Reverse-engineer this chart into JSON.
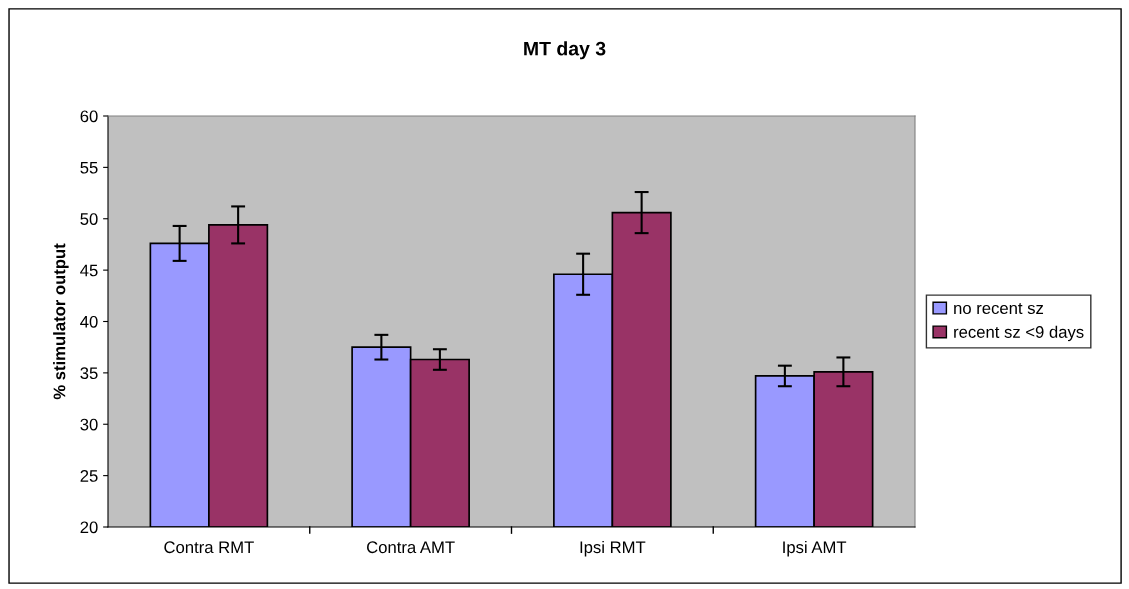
{
  "chart_data": {
    "type": "bar",
    "title": "MT day 3",
    "ylabel": "% stimulator output",
    "categories": [
      "Contra RMT",
      "Contra AMT",
      "Ipsi RMT",
      "Ipsi AMT"
    ],
    "series": [
      {
        "name": "no recent sz",
        "color": "#9999ff",
        "values": [
          47.6,
          37.5,
          44.6,
          34.7
        ],
        "errors": [
          1.7,
          1.2,
          2.0,
          1.0
        ]
      },
      {
        "name": "recent sz <9 days",
        "color": "#993366",
        "values": [
          49.4,
          36.3,
          50.6,
          35.1
        ],
        "errors": [
          1.8,
          1.0,
          2.0,
          1.4
        ]
      }
    ],
    "ylim": [
      20,
      60
    ],
    "yticks": [
      20,
      25,
      30,
      35,
      40,
      45,
      50,
      55,
      60
    ],
    "grid": false,
    "legend": "right"
  }
}
